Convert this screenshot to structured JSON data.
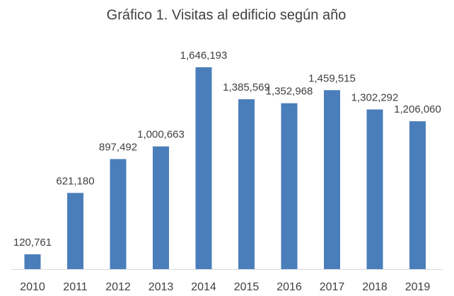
{
  "chart_data": {
    "type": "bar",
    "title": "Gráfico 1. Visitas al edificio según año",
    "categories": [
      "2010",
      "2011",
      "2012",
      "2013",
      "2014",
      "2015",
      "2016",
      "2017",
      "2018",
      "2019"
    ],
    "values": [
      120761,
      621180,
      897492,
      1000663,
      1646193,
      1385569,
      1352968,
      1459515,
      1302292,
      1206060
    ],
    "value_labels": [
      "120,761",
      "621,180",
      "897,492",
      "1,000,663",
      "1,646,193",
      "1,385,569",
      "1,352,968",
      "1,459,515",
      "1,302,292",
      "1,206,060"
    ],
    "color": "#4a7ebb"
  }
}
